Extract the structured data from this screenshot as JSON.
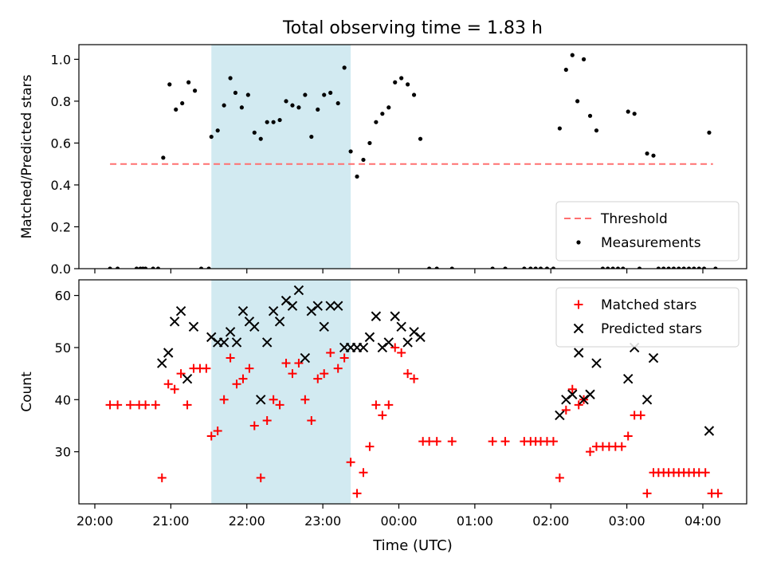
{
  "chart_data": {
    "type": "scatter",
    "title": "Total observing time = 1.83 h",
    "xlabel": "Time (UTC)",
    "x_ticks": [
      "20:00",
      "21:00",
      "22:00",
      "23:00",
      "00:00",
      "01:00",
      "02:00",
      "03:00",
      "04:00"
    ],
    "shaded_interval": {
      "start": "21:32",
      "end": "23:22",
      "color": "#add8e6"
    },
    "panels": [
      {
        "id": "top",
        "ylabel": "Matched/Predicted stars",
        "ylim": [
          0,
          1.07
        ],
        "yticks": [
          "0.0",
          "0.2",
          "0.4",
          "0.6",
          "0.8",
          "1.0"
        ],
        "legend_position": "lower right",
        "series": [
          {
            "name": "Threshold",
            "kind": "dashed-line",
            "color": "#ff7070",
            "points": [
              [
                "20:12",
                0.5
              ],
              [
                "04:08",
                0.5
              ]
            ]
          },
          {
            "name": "Measurements",
            "kind": "dot",
            "color": "#000000",
            "points": [
              [
                "20:12",
                0
              ],
              [
                "20:18",
                0
              ],
              [
                "20:33",
                0
              ],
              [
                "20:36",
                0
              ],
              [
                "20:38",
                0
              ],
              [
                "20:40",
                0
              ],
              [
                "20:46",
                0
              ],
              [
                "20:50",
                0
              ],
              [
                "20:54",
                0.53
              ],
              [
                "20:59",
                0.88
              ],
              [
                "21:04",
                0.76
              ],
              [
                "21:09",
                0.79
              ],
              [
                "21:14",
                0.89
              ],
              [
                "21:19",
                0.85
              ],
              [
                "21:24",
                0
              ],
              [
                "21:30",
                0
              ],
              [
                "21:32",
                0.63
              ],
              [
                "21:37",
                0.66
              ],
              [
                "21:42",
                0.78
              ],
              [
                "21:47",
                0.91
              ],
              [
                "21:51",
                0.84
              ],
              [
                "21:56",
                0.77
              ],
              [
                "22:01",
                0.83
              ],
              [
                "22:06",
                0.65
              ],
              [
                "22:11",
                0.62
              ],
              [
                "22:16",
                0.7
              ],
              [
                "22:21",
                0.7
              ],
              [
                "22:26",
                0.71
              ],
              [
                "22:31",
                0.8
              ],
              [
                "22:36",
                0.78
              ],
              [
                "22:41",
                0.77
              ],
              [
                "22:46",
                0.83
              ],
              [
                "22:51",
                0.63
              ],
              [
                "22:56",
                0.76
              ],
              [
                "23:01",
                0.83
              ],
              [
                "23:06",
                0.84
              ],
              [
                "23:12",
                0.79
              ],
              [
                "23:17",
                0.96
              ],
              [
                "23:22",
                0.56
              ],
              [
                "23:27",
                0.44
              ],
              [
                "23:32",
                0.52
              ],
              [
                "23:37",
                0.6
              ],
              [
                "23:42",
                0.7
              ],
              [
                "23:47",
                0.74
              ],
              [
                "23:52",
                0.77
              ],
              [
                "23:57",
                0.89
              ],
              [
                "00:02",
                0.91
              ],
              [
                "00:07",
                0.88
              ],
              [
                "00:12",
                0.83
              ],
              [
                "00:17",
                0.62
              ],
              [
                "00:24",
                0
              ],
              [
                "00:30",
                0
              ],
              [
                "00:42",
                0
              ],
              [
                "01:14",
                0
              ],
              [
                "01:24",
                0
              ],
              [
                "01:39",
                0
              ],
              [
                "01:44",
                0
              ],
              [
                "01:48",
                0
              ],
              [
                "01:52",
                0
              ],
              [
                "01:57",
                0
              ],
              [
                "02:02",
                0
              ],
              [
                "02:07",
                0.67
              ],
              [
                "02:12",
                0.95
              ],
              [
                "02:17",
                1.02
              ],
              [
                "02:21",
                0.8
              ],
              [
                "02:26",
                1.0
              ],
              [
                "02:31",
                0.73
              ],
              [
                "02:36",
                0.66
              ],
              [
                "02:41",
                0
              ],
              [
                "02:45",
                0
              ],
              [
                "02:49",
                0
              ],
              [
                "02:53",
                0
              ],
              [
                "02:57",
                0
              ],
              [
                "03:01",
                0.75
              ],
              [
                "03:06",
                0.74
              ],
              [
                "03:10",
                0
              ],
              [
                "03:16",
                0.55
              ],
              [
                "03:21",
                0.54
              ],
              [
                "03:25",
                0
              ],
              [
                "03:29",
                0
              ],
              [
                "03:33",
                0
              ],
              [
                "03:37",
                0
              ],
              [
                "03:41",
                0
              ],
              [
                "03:45",
                0
              ],
              [
                "03:49",
                0
              ],
              [
                "03:53",
                0
              ],
              [
                "03:57",
                0
              ],
              [
                "04:01",
                0
              ],
              [
                "04:05",
                0.65
              ],
              [
                "04:10",
                0
              ]
            ]
          }
        ]
      },
      {
        "id": "bottom",
        "ylabel": "Count",
        "ylim": [
          20,
          63
        ],
        "yticks": [
          "30",
          "40",
          "50",
          "60"
        ],
        "legend_position": "upper right",
        "series": [
          {
            "name": "Matched stars",
            "kind": "plus",
            "color": "#ff0000",
            "points": [
              [
                "20:12",
                39
              ],
              [
                "20:18",
                39
              ],
              [
                "20:28",
                39
              ],
              [
                "20:35",
                39
              ],
              [
                "20:40",
                39
              ],
              [
                "20:48",
                39
              ],
              [
                "20:53",
                25
              ],
              [
                "20:58",
                43
              ],
              [
                "21:03",
                42
              ],
              [
                "21:08",
                45
              ],
              [
                "21:13",
                39
              ],
              [
                "21:18",
                46
              ],
              [
                "21:23",
                46
              ],
              [
                "21:28",
                46
              ],
              [
                "21:32",
                33
              ],
              [
                "21:37",
                34
              ],
              [
                "21:42",
                40
              ],
              [
                "21:47",
                48
              ],
              [
                "21:52",
                43
              ],
              [
                "21:57",
                44
              ],
              [
                "22:02",
                46
              ],
              [
                "22:06",
                35
              ],
              [
                "22:11",
                25
              ],
              [
                "22:16",
                36
              ],
              [
                "22:21",
                40
              ],
              [
                "22:26",
                39
              ],
              [
                "22:31",
                47
              ],
              [
                "22:36",
                45
              ],
              [
                "22:41",
                47
              ],
              [
                "22:46",
                40
              ],
              [
                "22:51",
                36
              ],
              [
                "22:56",
                44
              ],
              [
                "23:01",
                45
              ],
              [
                "23:06",
                49
              ],
              [
                "23:12",
                46
              ],
              [
                "23:17",
                48
              ],
              [
                "23:22",
                28
              ],
              [
                "23:27",
                22
              ],
              [
                "23:32",
                26
              ],
              [
                "23:37",
                31
              ],
              [
                "23:42",
                39
              ],
              [
                "23:47",
                37
              ],
              [
                "23:52",
                39
              ],
              [
                "23:57",
                50
              ],
              [
                "00:02",
                49
              ],
              [
                "00:07",
                45
              ],
              [
                "00:12",
                44
              ],
              [
                "00:19",
                32
              ],
              [
                "00:24",
                32
              ],
              [
                "00:30",
                32
              ],
              [
                "00:42",
                32
              ],
              [
                "01:14",
                32
              ],
              [
                "01:24",
                32
              ],
              [
                "01:39",
                32
              ],
              [
                "01:44",
                32
              ],
              [
                "01:48",
                32
              ],
              [
                "01:52",
                32
              ],
              [
                "01:57",
                32
              ],
              [
                "02:02",
                32
              ],
              [
                "02:07",
                25
              ],
              [
                "02:12",
                38
              ],
              [
                "02:17",
                42
              ],
              [
                "02:22",
                39
              ],
              [
                "02:26",
                40
              ],
              [
                "02:31",
                30
              ],
              [
                "02:36",
                31
              ],
              [
                "02:41",
                31
              ],
              [
                "02:46",
                31
              ],
              [
                "02:51",
                31
              ],
              [
                "02:56",
                31
              ],
              [
                "03:01",
                33
              ],
              [
                "03:06",
                37
              ],
              [
                "03:11",
                37
              ],
              [
                "03:16",
                22
              ],
              [
                "03:21",
                26
              ],
              [
                "03:25",
                26
              ],
              [
                "03:29",
                26
              ],
              [
                "03:33",
                26
              ],
              [
                "03:37",
                26
              ],
              [
                "03:41",
                26
              ],
              [
                "03:45",
                26
              ],
              [
                "03:49",
                26
              ],
              [
                "03:53",
                26
              ],
              [
                "03:57",
                26
              ],
              [
                "04:02",
                26
              ],
              [
                "04:07",
                22
              ],
              [
                "04:12",
                22
              ]
            ]
          },
          {
            "name": "Predicted stars",
            "kind": "x",
            "color": "#000000",
            "points": [
              [
                "20:53",
                47
              ],
              [
                "20:58",
                49
              ],
              [
                "21:03",
                55
              ],
              [
                "21:08",
                57
              ],
              [
                "21:13",
                44
              ],
              [
                "21:18",
                54
              ],
              [
                "21:32",
                52
              ],
              [
                "21:37",
                51
              ],
              [
                "21:42",
                51
              ],
              [
                "21:47",
                53
              ],
              [
                "21:52",
                51
              ],
              [
                "21:57",
                57
              ],
              [
                "22:02",
                55
              ],
              [
                "22:06",
                54
              ],
              [
                "22:11",
                40
              ],
              [
                "22:16",
                51
              ],
              [
                "22:21",
                57
              ],
              [
                "22:26",
                55
              ],
              [
                "22:31",
                59
              ],
              [
                "22:36",
                58
              ],
              [
                "22:41",
                61
              ],
              [
                "22:46",
                48
              ],
              [
                "22:51",
                57
              ],
              [
                "22:56",
                58
              ],
              [
                "23:01",
                54
              ],
              [
                "23:06",
                58
              ],
              [
                "23:12",
                58
              ],
              [
                "23:17",
                50
              ],
              [
                "23:22",
                50
              ],
              [
                "23:27",
                50
              ],
              [
                "23:32",
                50
              ],
              [
                "23:37",
                52
              ],
              [
                "23:42",
                56
              ],
              [
                "23:47",
                50
              ],
              [
                "23:52",
                51
              ],
              [
                "23:57",
                56
              ],
              [
                "00:02",
                54
              ],
              [
                "00:07",
                51
              ],
              [
                "00:12",
                53
              ],
              [
                "00:17",
                52
              ],
              [
                "02:07",
                37
              ],
              [
                "02:12",
                40
              ],
              [
                "02:17",
                41
              ],
              [
                "02:22",
                49
              ],
              [
                "02:26",
                40
              ],
              [
                "02:31",
                41
              ],
              [
                "02:36",
                47
              ],
              [
                "03:01",
                44
              ],
              [
                "03:06",
                50
              ],
              [
                "03:16",
                40
              ],
              [
                "03:21",
                48
              ],
              [
                "04:05",
                34
              ]
            ]
          }
        ]
      }
    ]
  }
}
